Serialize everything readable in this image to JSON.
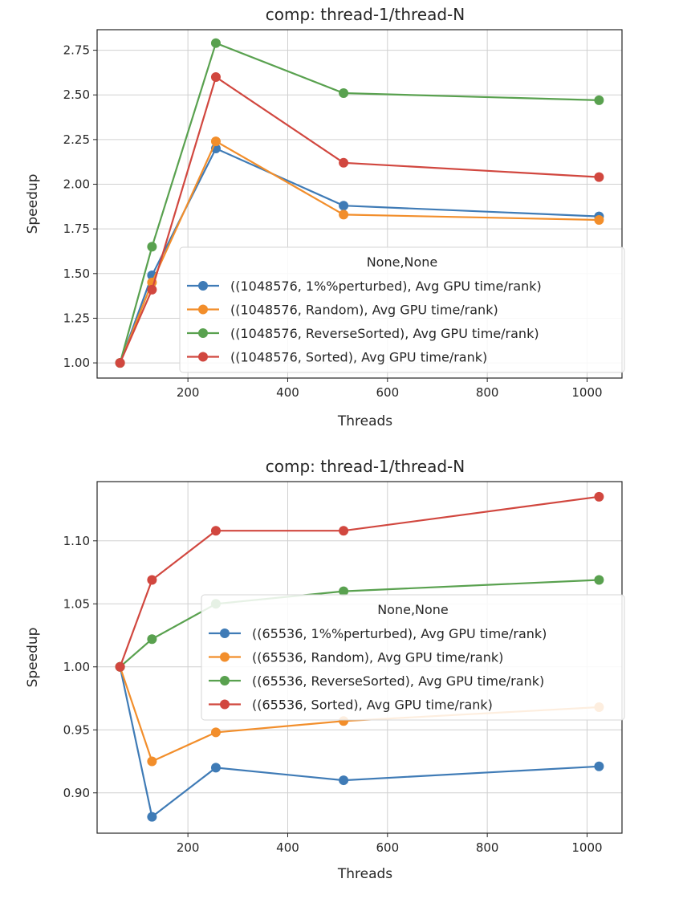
{
  "chart_data": [
    {
      "type": "line",
      "title": "comp: thread-1/thread-N",
      "xlabel": "Threads",
      "ylabel": "Speedup",
      "xlim": [
        18,
        1070
      ],
      "ylim": [
        0.915,
        2.865
      ],
      "xticks": [
        200,
        400,
        600,
        800,
        1000
      ],
      "yticks": [
        1.0,
        1.25,
        1.5,
        1.75,
        2.0,
        2.25,
        2.5,
        2.75
      ],
      "ytick_labels": [
        "1.00",
        "1.25",
        "1.50",
        "1.75",
        "2.00",
        "2.25",
        "2.50",
        "2.75"
      ],
      "grid": true,
      "legend_title": "None,None",
      "legend_position": "lower-right",
      "x": [
        64,
        128,
        256,
        512,
        1024
      ],
      "series": [
        {
          "name": "((1048576, 1%%perturbed), Avg GPU time/rank)",
          "color": "#3f7bb6",
          "values": [
            1.0,
            1.49,
            2.2,
            1.88,
            1.82
          ]
        },
        {
          "name": "((1048576, Random), Avg GPU time/rank)",
          "color": "#f28e2b",
          "values": [
            1.0,
            1.45,
            2.24,
            1.83,
            1.8
          ]
        },
        {
          "name": "((1048576, ReverseSorted), Avg GPU time/rank)",
          "color": "#59a14f",
          "values": [
            1.0,
            1.65,
            2.79,
            2.51,
            2.47
          ]
        },
        {
          "name": "((1048576, Sorted), Avg GPU time/rank)",
          "color": "#d1473f",
          "values": [
            1.0,
            1.41,
            2.6,
            2.12,
            2.04
          ]
        }
      ]
    },
    {
      "type": "line",
      "title": "comp: thread-1/thread-N",
      "xlabel": "Threads",
      "ylabel": "Speedup",
      "xlim": [
        18,
        1070
      ],
      "ylim": [
        0.868,
        1.147
      ],
      "xticks": [
        200,
        400,
        600,
        800,
        1000
      ],
      "yticks": [
        0.9,
        0.95,
        1.0,
        1.05,
        1.1
      ],
      "ytick_labels": [
        "0.90",
        "0.95",
        "1.00",
        "1.05",
        "1.10"
      ],
      "grid": true,
      "legend_title": "None,None",
      "legend_position": "center-right",
      "x": [
        64,
        128,
        256,
        512,
        1024
      ],
      "series": [
        {
          "name": "((65536, 1%%perturbed), Avg GPU time/rank)",
          "color": "#3f7bb6",
          "values": [
            1.0,
            0.881,
            0.92,
            0.91,
            0.921
          ]
        },
        {
          "name": "((65536, Random), Avg GPU time/rank)",
          "color": "#f28e2b",
          "values": [
            1.0,
            0.925,
            0.948,
            0.957,
            0.968
          ]
        },
        {
          "name": "((65536, ReverseSorted), Avg GPU time/rank)",
          "color": "#59a14f",
          "values": [
            1.0,
            1.022,
            1.05,
            1.06,
            1.069
          ]
        },
        {
          "name": "((65536, Sorted), Avg GPU time/rank)",
          "color": "#d1473f",
          "values": [
            1.0,
            1.069,
            1.108,
            1.108,
            1.135
          ]
        }
      ]
    }
  ]
}
